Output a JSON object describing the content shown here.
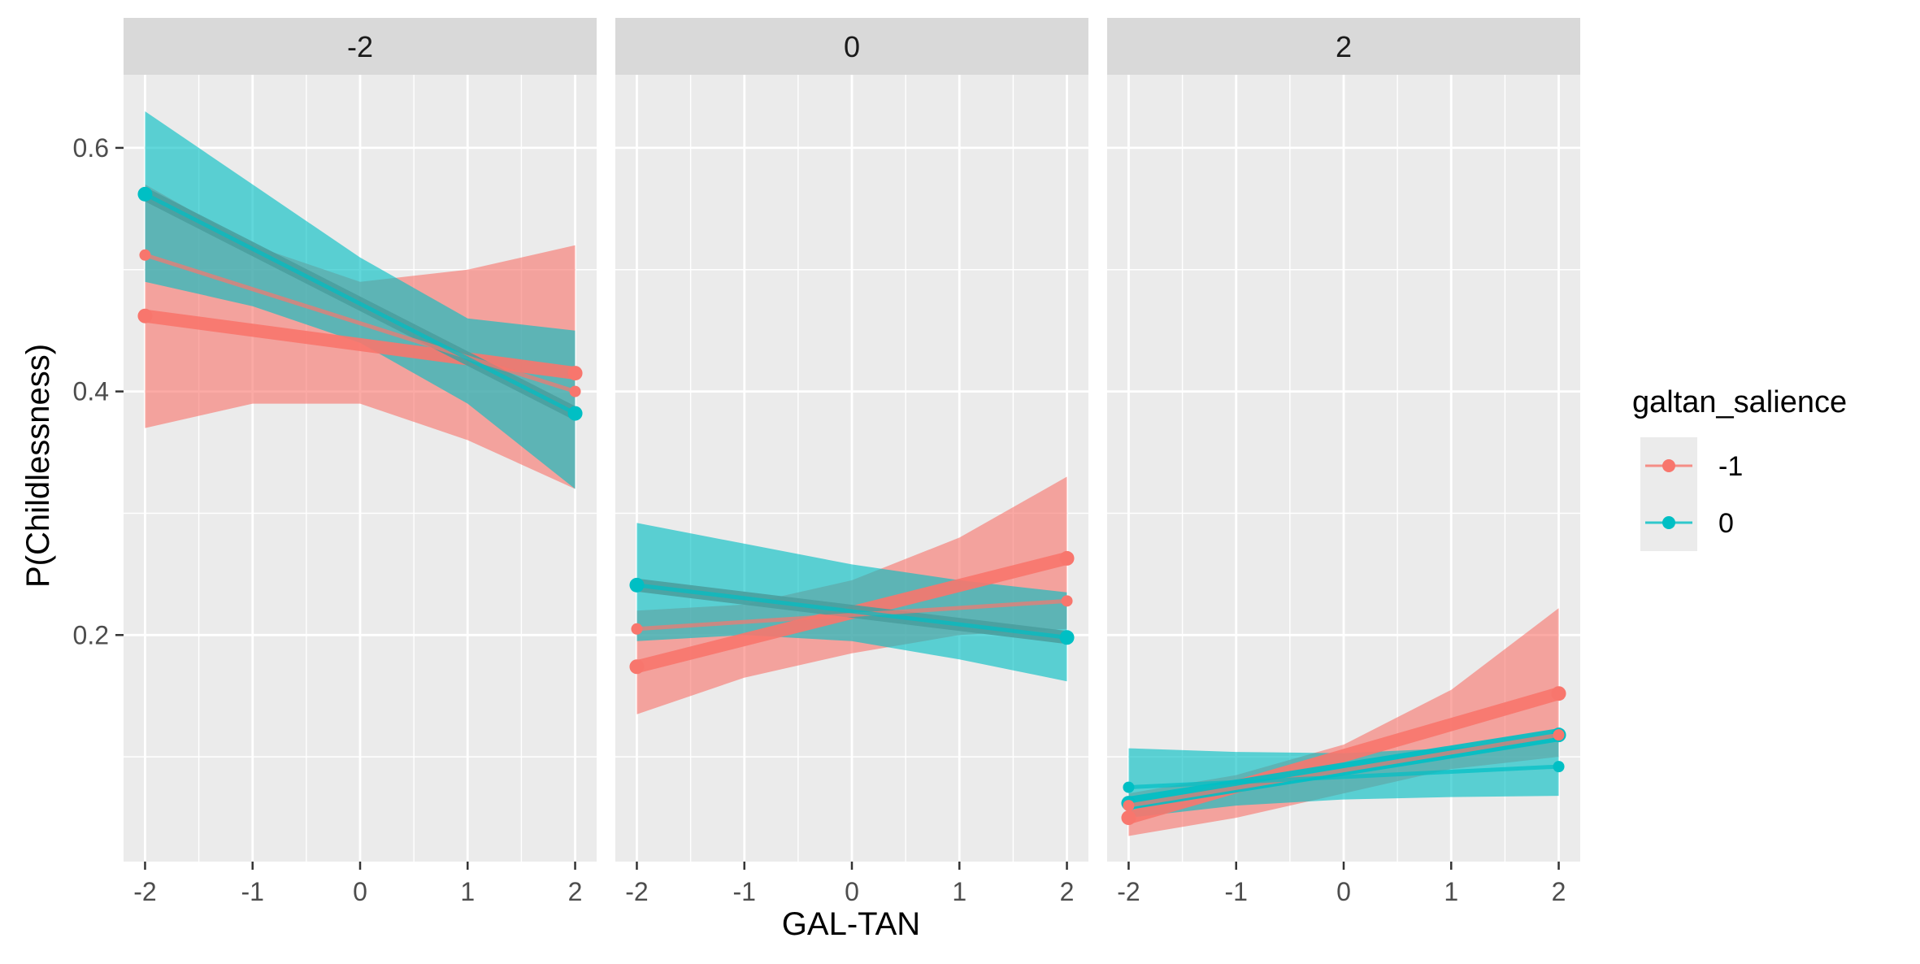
{
  "chart_data": {
    "type": "line",
    "facet_variable_values": [
      "-2",
      "0",
      "2"
    ],
    "xlabel": "GAL-TAN",
    "ylabel": "P(Childlessness)",
    "x_ticks": [
      -2,
      -1,
      0,
      1,
      2
    ],
    "x_tick_labels": [
      "-2",
      "-1",
      "0",
      "1",
      "2"
    ],
    "y_ticks": [
      0.2,
      0.4,
      0.6
    ],
    "y_tick_labels": [
      "0.2",
      "0.4",
      "0.6"
    ],
    "xlim": [
      -2.2,
      2.2
    ],
    "ylim": [
      0.014,
      0.66
    ],
    "grid": true,
    "legend": {
      "title": "galtan_salience",
      "placement": "right",
      "entries": [
        {
          "label": "-1",
          "color": "#F8766D"
        },
        {
          "label": "0",
          "color": "#00BFC4"
        }
      ]
    },
    "colors": {
      "series_red": "#F8766D",
      "series_teal": "#00BFC4",
      "overlap": "#4A9E9E",
      "panel_bg": "#EBEBEB",
      "strip_bg": "#D9D9D9",
      "grid_major": "#FFFFFF",
      "axis_text": "#4D4D4D"
    },
    "panels": [
      {
        "strip_label": "-2",
        "bands": [
          {
            "series": "-1",
            "x": [
              -2,
              -1,
              0,
              1,
              2
            ],
            "lower": [
              0.37,
              0.39,
              0.39,
              0.36,
              0.32
            ],
            "upper": [
              0.57,
              0.52,
              0.49,
              0.5,
              0.52
            ]
          },
          {
            "series": "0",
            "x": [
              -2,
              -1,
              0,
              1,
              2
            ],
            "lower": [
              0.49,
              0.47,
              0.44,
              0.39,
              0.32
            ],
            "upper": [
              0.63,
              0.57,
              0.51,
              0.46,
              0.45
            ]
          }
        ],
        "lines": [
          {
            "series": "-1",
            "width": "thick",
            "x": [
              -2,
              2
            ],
            "y": [
              0.462,
              0.415
            ]
          },
          {
            "series": "-1",
            "width": "thin",
            "x": [
              -2,
              2
            ],
            "y": [
              0.512,
              0.4
            ]
          },
          {
            "series": "0",
            "width": "thick",
            "x": [
              -2,
              2
            ],
            "y": [
              0.562,
              0.382
            ]
          },
          {
            "series": "0",
            "width": "thin",
            "x": [
              -2,
              2
            ],
            "y": [
              0.562,
              0.382
            ]
          }
        ]
      },
      {
        "strip_label": "0",
        "bands": [
          {
            "series": "-1",
            "x": [
              -2,
              -1,
              0,
              1,
              2
            ],
            "lower": [
              0.135,
              0.165,
              0.185,
              0.2,
              0.205
            ],
            "upper": [
              0.22,
              0.225,
              0.245,
              0.28,
              0.33
            ]
          },
          {
            "series": "0",
            "x": [
              -2,
              -1,
              0,
              1,
              2
            ],
            "lower": [
              0.195,
              0.2,
              0.195,
              0.18,
              0.162
            ],
            "upper": [
              0.292,
              0.275,
              0.258,
              0.245,
              0.235
            ]
          }
        ],
        "lines": [
          {
            "series": "-1",
            "width": "thick",
            "x": [
              -2,
              2
            ],
            "y": [
              0.174,
              0.263
            ]
          },
          {
            "series": "-1",
            "width": "thin",
            "x": [
              -2,
              2
            ],
            "y": [
              0.205,
              0.228
            ]
          },
          {
            "series": "0",
            "width": "thick",
            "x": [
              -2,
              2
            ],
            "y": [
              0.241,
              0.198
            ]
          },
          {
            "series": "0",
            "width": "thin",
            "x": [
              -2,
              2
            ],
            "y": [
              0.241,
              0.198
            ]
          }
        ]
      },
      {
        "strip_label": "2",
        "bands": [
          {
            "series": "-1",
            "x": [
              -2,
              -1,
              0,
              1,
              2
            ],
            "lower": [
              0.035,
              0.05,
              0.07,
              0.09,
              0.1
            ],
            "upper": [
              0.07,
              0.085,
              0.11,
              0.155,
              0.222
            ]
          },
          {
            "series": "0",
            "x": [
              -2,
              -1,
              0,
              1,
              2
            ],
            "lower": [
              0.05,
              0.06,
              0.065,
              0.067,
              0.068
            ],
            "upper": [
              0.107,
              0.104,
              0.103,
              0.107,
              0.115
            ]
          }
        ],
        "lines": [
          {
            "series": "-1",
            "width": "thick",
            "x": [
              -2,
              2
            ],
            "y": [
              0.05,
              0.152
            ]
          },
          {
            "series": "-1",
            "width": "thin",
            "x": [
              -2,
              2
            ],
            "y": [
              0.06,
              0.118
            ]
          },
          {
            "series": "0",
            "width": "thick",
            "x": [
              -2,
              2
            ],
            "y": [
              0.062,
              0.118
            ]
          },
          {
            "series": "0",
            "width": "thin",
            "x": [
              -2,
              2
            ],
            "y": [
              0.075,
              0.092
            ]
          }
        ]
      }
    ]
  }
}
